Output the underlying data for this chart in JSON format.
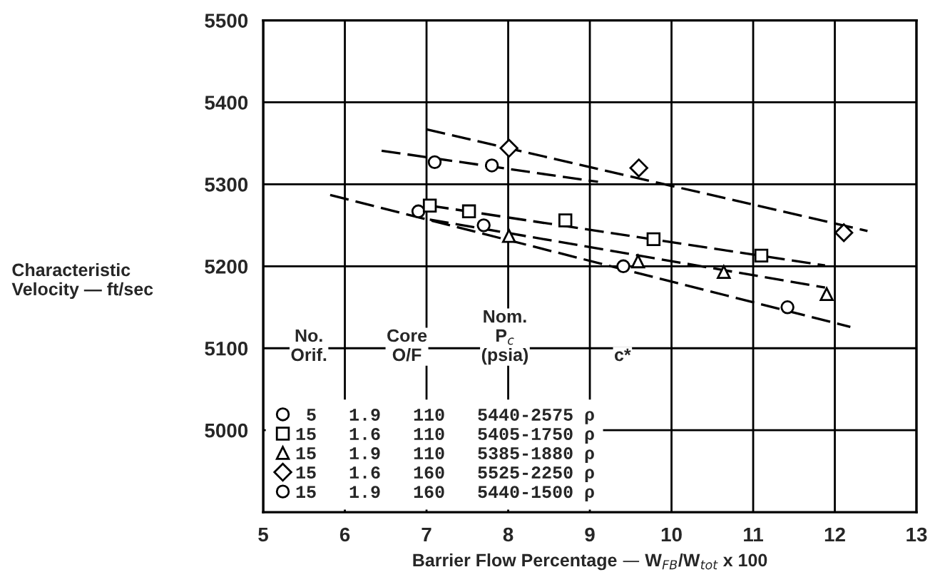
{
  "chart_data": {
    "type": "scatter",
    "xlabel": "Barrier Flow Percentage — W$_{FB}$/W$_{tot}$ x 100",
    "ylabel": "Characteristic\nVelocity — ft/sec",
    "xlim": [
      5,
      13
    ],
    "xticks": [
      5,
      6,
      7,
      8,
      9,
      10,
      11,
      12,
      13
    ],
    "ylim": [
      4900,
      5500
    ],
    "yticks": [
      5000,
      5100,
      5200,
      5300,
      5400,
      5500
    ],
    "grid": true,
    "legend": "bottom left",
    "annotations": [
      "No.\nOrif.",
      "Core\nO/F",
      "Nom.\nP$_{c}$\n(psia)",
      "c*"
    ],
    "series": [
      {
        "name": " 5   1.9   110   5440-2575 ρ",
        "marker": "circle",
        "color": "#000000",
        "x": [
          6.9,
          7.7,
          9.41,
          11.42
        ],
        "values": [
          5267,
          5250,
          5200,
          5150
        ]
      },
      {
        "name": "15   1.6   110   5405-1750 ρ",
        "marker": "square",
        "color": "#000000",
        "x": [
          7.04,
          7.52,
          8.7,
          9.78,
          11.1
        ],
        "values": [
          5274,
          5267,
          5256,
          5233,
          5213
        ]
      },
      {
        "name": "15   1.9   110   5385-1880 ρ",
        "marker": "triangle",
        "color": "#000000",
        "x": [
          8.01,
          9.59,
          10.64,
          11.9
        ],
        "values": [
          5237,
          5206,
          5193,
          5166
        ]
      },
      {
        "name": "15   1.6   160   5525-2250 ρ",
        "marker": "diamond",
        "color": "#000000",
        "x": [
          8.01,
          9.6,
          12.11
        ],
        "values": [
          5344,
          5320,
          5241
        ]
      },
      {
        "name": "15   1.9   160   5440-1500 ρ",
        "marker": "circle",
        "color": "#000000",
        "x": [
          7.1,
          7.8
        ],
        "values": [
          5327,
          5323
        ]
      },
      {
        "type": "line",
        "line_style": "dashed",
        "marker": "none",
        "color": "#000000",
        "x": [
          5.82,
          12.19
        ],
        "values": [
          5287,
          5126
        ]
      },
      {
        "type": "line",
        "line_style": "dashed",
        "marker": "none",
        "color": "#000000",
        "x": [
          7.04,
          11.88
        ],
        "values": [
          5274,
          5201
        ]
      },
      {
        "type": "line",
        "line_style": "dashed",
        "marker": "none",
        "color": "#000000",
        "x": [
          7.04,
          11.88
        ],
        "values": [
          5257,
          5174
        ]
      },
      {
        "type": "line",
        "line_style": "dashed",
        "marker": "none",
        "color": "#000000",
        "x": [
          7.0,
          12.4
        ],
        "values": [
          5367,
          5243
        ]
      },
      {
        "type": "line",
        "line_style": "dashed",
        "marker": "none",
        "color": "#000000",
        "x": [
          6.45,
          9.1
        ],
        "values": [
          5341,
          5303
        ]
      }
    ]
  }
}
